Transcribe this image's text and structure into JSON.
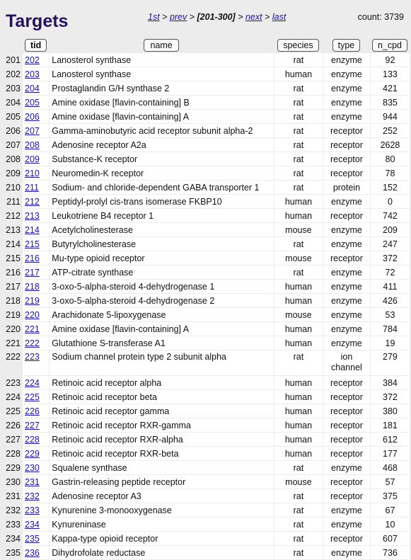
{
  "page": {
    "title": "Targets",
    "count_label": "count: 3739"
  },
  "pager": {
    "first": "1st",
    "prev": "prev",
    "current": "[201-300]",
    "next": "next",
    "last": "last"
  },
  "table": {
    "columns": [
      "tid",
      "name",
      "species",
      "type",
      "n_cpd"
    ],
    "rows": [
      {
        "num": "201",
        "tid": "202",
        "name": "Lanosterol synthase",
        "species": "rat",
        "type": "enzyme",
        "n_cpd": "92"
      },
      {
        "num": "202",
        "tid": "203",
        "name": "Lanosterol synthase",
        "species": "human",
        "type": "enzyme",
        "n_cpd": "133"
      },
      {
        "num": "203",
        "tid": "204",
        "name": "Prostaglandin G/H synthase 2",
        "species": "rat",
        "type": "enzyme",
        "n_cpd": "421"
      },
      {
        "num": "204",
        "tid": "205",
        "name": "Amine oxidase [flavin-containing] B",
        "species": "rat",
        "type": "enzyme",
        "n_cpd": "835"
      },
      {
        "num": "205",
        "tid": "206",
        "name": "Amine oxidase [flavin-containing] A",
        "species": "rat",
        "type": "enzyme",
        "n_cpd": "944"
      },
      {
        "num": "206",
        "tid": "207",
        "name": "Gamma-aminobutyric acid receptor subunit alpha-2",
        "species": "rat",
        "type": "receptor",
        "n_cpd": "252"
      },
      {
        "num": "207",
        "tid": "208",
        "name": "Adenosine receptor A2a",
        "species": "rat",
        "type": "receptor",
        "n_cpd": "2628"
      },
      {
        "num": "208",
        "tid": "209",
        "name": "Substance-K receptor",
        "species": "rat",
        "type": "receptor",
        "n_cpd": "80"
      },
      {
        "num": "209",
        "tid": "210",
        "name": "Neuromedin-K receptor",
        "species": "rat",
        "type": "receptor",
        "n_cpd": "78"
      },
      {
        "num": "210",
        "tid": "211",
        "name": "Sodium- and chloride-dependent GABA transporter 1",
        "species": "rat",
        "type": "protein",
        "n_cpd": "152"
      },
      {
        "num": "211",
        "tid": "212",
        "name": "Peptidyl-prolyl cis-trans isomerase FKBP10",
        "species": "human",
        "type": "enzyme",
        "n_cpd": "0"
      },
      {
        "num": "212",
        "tid": "213",
        "name": "Leukotriene B4 receptor 1",
        "species": "human",
        "type": "receptor",
        "n_cpd": "742"
      },
      {
        "num": "213",
        "tid": "214",
        "name": "Acetylcholinesterase",
        "species": "mouse",
        "type": "enzyme",
        "n_cpd": "209"
      },
      {
        "num": "214",
        "tid": "215",
        "name": "Butyrylcholinesterase",
        "species": "rat",
        "type": "enzyme",
        "n_cpd": "247"
      },
      {
        "num": "215",
        "tid": "216",
        "name": "Mu-type opioid receptor",
        "species": "mouse",
        "type": "receptor",
        "n_cpd": "372"
      },
      {
        "num": "216",
        "tid": "217",
        "name": "ATP-citrate synthase",
        "species": "rat",
        "type": "enzyme",
        "n_cpd": "72"
      },
      {
        "num": "217",
        "tid": "218",
        "name": "3-oxo-5-alpha-steroid 4-dehydrogenase 1",
        "species": "human",
        "type": "enzyme",
        "n_cpd": "411"
      },
      {
        "num": "218",
        "tid": "219",
        "name": "3-oxo-5-alpha-steroid 4-dehydrogenase 2",
        "species": "human",
        "type": "enzyme",
        "n_cpd": "426"
      },
      {
        "num": "219",
        "tid": "220",
        "name": "Arachidonate 5-lipoxygenase",
        "species": "mouse",
        "type": "enzyme",
        "n_cpd": "53"
      },
      {
        "num": "220",
        "tid": "221",
        "name": "Amine oxidase [flavin-containing] A",
        "species": "human",
        "type": "enzyme",
        "n_cpd": "784"
      },
      {
        "num": "221",
        "tid": "222",
        "name": "Glutathione S-transferase A1",
        "species": "human",
        "type": "enzyme",
        "n_cpd": "19"
      },
      {
        "num": "222",
        "tid": "223",
        "name": "Sodium channel protein type 2 subunit alpha",
        "species": "rat",
        "type": "ion channel",
        "n_cpd": "279",
        "tall": true
      },
      {
        "num": "223",
        "tid": "224",
        "name": "Retinoic acid receptor alpha",
        "species": "human",
        "type": "receptor",
        "n_cpd": "384"
      },
      {
        "num": "224",
        "tid": "225",
        "name": "Retinoic acid receptor beta",
        "species": "human",
        "type": "receptor",
        "n_cpd": "372"
      },
      {
        "num": "225",
        "tid": "226",
        "name": "Retinoic acid receptor gamma",
        "species": "human",
        "type": "receptor",
        "n_cpd": "380"
      },
      {
        "num": "226",
        "tid": "227",
        "name": "Retinoic acid receptor RXR-gamma",
        "species": "human",
        "type": "receptor",
        "n_cpd": "181"
      },
      {
        "num": "227",
        "tid": "228",
        "name": "Retinoic acid receptor RXR-alpha",
        "species": "human",
        "type": "receptor",
        "n_cpd": "612"
      },
      {
        "num": "228",
        "tid": "229",
        "name": "Retinoic acid receptor RXR-beta",
        "species": "human",
        "type": "receptor",
        "n_cpd": "177"
      },
      {
        "num": "229",
        "tid": "230",
        "name": "Squalene synthase",
        "species": "rat",
        "type": "enzyme",
        "n_cpd": "468"
      },
      {
        "num": "230",
        "tid": "231",
        "name": "Gastrin-releasing peptide receptor",
        "species": "mouse",
        "type": "receptor",
        "n_cpd": "57"
      },
      {
        "num": "231",
        "tid": "232",
        "name": "Adenosine receptor A3",
        "species": "rat",
        "type": "receptor",
        "n_cpd": "375"
      },
      {
        "num": "232",
        "tid": "233",
        "name": "Kynurenine 3-monooxygenase",
        "species": "rat",
        "type": "enzyme",
        "n_cpd": "67"
      },
      {
        "num": "233",
        "tid": "234",
        "name": "Kynureninase",
        "species": "rat",
        "type": "enzyme",
        "n_cpd": "10"
      },
      {
        "num": "234",
        "tid": "235",
        "name": "Kappa-type opioid receptor",
        "species": "rat",
        "type": "receptor",
        "n_cpd": "607"
      },
      {
        "num": "235",
        "tid": "236",
        "name": "Dihydrofolate reductase",
        "species": "rat",
        "type": "enzyme",
        "n_cpd": "736"
      }
    ]
  }
}
